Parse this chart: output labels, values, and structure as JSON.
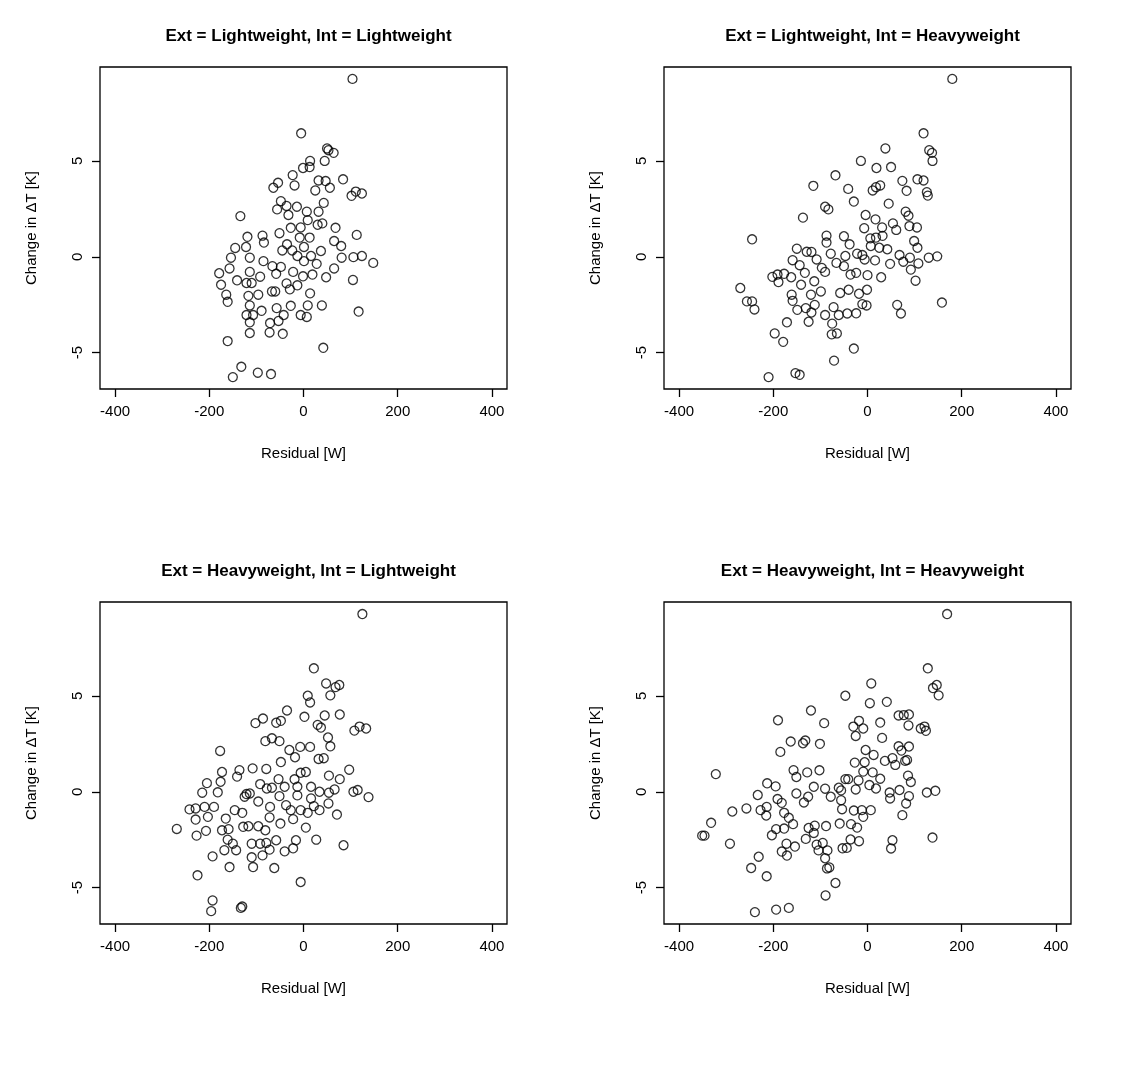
{
  "chart_data": [
    {
      "type": "scatter",
      "title": "Ext = Lightweight, Int = Lightweight",
      "xlabel": "Residual [W]",
      "ylabel": "Change in ΔT [K]",
      "xlim": [
        -432,
        432
      ],
      "ylim": [
        -6.9,
        9.9
      ],
      "xticks": [
        -400,
        -200,
        0,
        200,
        400
      ],
      "yticks": [
        -5,
        0,
        5
      ],
      "grid": false,
      "marker": "circle",
      "color": "#000000",
      "x": [
        104,
        -5,
        50,
        53,
        64,
        14,
        45,
        -1,
        13,
        -23,
        -19,
        -54,
        -64,
        32,
        47,
        56,
        84,
        25,
        102,
        111,
        124,
        -48,
        -56,
        -36,
        -14,
        43,
        -134,
        -32,
        7,
        32,
        9,
        30,
        40,
        -27,
        -6,
        68,
        -51,
        113,
        -119,
        -87,
        -8,
        13,
        65,
        80,
        -145,
        -122,
        -84,
        -35,
        37,
        1,
        -45,
        -24,
        -154,
        -114,
        -85,
        106,
        124,
        148,
        81,
        -13,
        1,
        16,
        -66,
        -48,
        28,
        65,
        -179,
        -157,
        -141,
        -114,
        -92,
        -58,
        -22,
        -1,
        19,
        48,
        -175,
        -164,
        -161,
        -121,
        -110,
        -96,
        -67,
        -60,
        -36,
        -29,
        -13,
        14,
        105,
        -117,
        -114,
        -89,
        -121,
        -107,
        -57,
        -42,
        -27,
        9,
        39,
        -6,
        7,
        117,
        -114,
        -71,
        -53,
        -114,
        -72,
        -44,
        -161,
        42,
        -132,
        -150,
        -97,
        -69
      ],
      "values": [
        9.28,
        6.44,
        5.65,
        5.56,
        5.42,
        5.0,
        5.0,
        4.63,
        4.68,
        4.26,
        3.72,
        3.86,
        3.6,
        3.98,
        3.95,
        3.6,
        4.04,
        3.46,
        3.18,
        3.4,
        3.3,
        2.9,
        2.47,
        2.65,
        2.61,
        2.81,
        2.12,
        2.18,
        2.35,
        2.35,
        1.91,
        1.67,
        1.74,
        1.51,
        1.53,
        1.51,
        1.23,
        1.14,
        1.04,
        1.1,
        1.0,
        1.0,
        0.82,
        0.56,
        0.46,
        0.51,
        0.74,
        0.65,
        0.3,
        0.51,
        0.33,
        0.33,
        -0.05,
        -0.05,
        -0.23,
        -0.02,
        0.04,
        -0.32,
        -0.05,
        0.04,
        -0.23,
        0.04,
        -0.49,
        -0.53,
        -0.37,
        -0.61,
        -0.86,
        -0.61,
        -1.23,
        -0.79,
        -1.04,
        -0.89,
        -0.79,
        -1.02,
        -0.93,
        -1.07,
        -1.46,
        -1.98,
        -2.35,
        -1.37,
        -1.37,
        -1.98,
        -1.81,
        -1.81,
        -1.39,
        -1.7,
        -1.49,
        -1.91,
        -1.21,
        -2.04,
        -2.54,
        -2.82,
        -3.04,
        -3.04,
        -2.68,
        -3.04,
        -2.56,
        -2.54,
        -2.54,
        -3.04,
        -3.14,
        -2.86,
        -3.42,
        -3.46,
        -3.35,
        -3.98,
        -3.95,
        -4.02,
        -4.4,
        -4.75,
        -5.74,
        -6.28,
        -6.05,
        -6.12
      ]
    },
    {
      "type": "scatter",
      "title": "Ext = Lightweight, Int = Heavyweight",
      "xlabel": "Residual [W]",
      "ylabel": "Change in ΔT [K]",
      "xlim": [
        -432,
        432
      ],
      "ylim": [
        -6.9,
        9.9
      ],
      "xticks": [
        -400,
        -200,
        0,
        200,
        400
      ],
      "yticks": [
        -5,
        0,
        5
      ],
      "grid": false,
      "marker": "circle",
      "color": "#000000",
      "x": [
        180,
        119,
        131,
        137,
        138,
        38,
        -14,
        19,
        50,
        -68,
        -115,
        -41,
        11,
        18,
        27,
        74,
        83,
        106,
        119,
        126,
        128,
        -29,
        45,
        -90,
        -83,
        -137,
        -4,
        17,
        81,
        87,
        54,
        61,
        89,
        105,
        -7,
        31,
        -245,
        -87,
        -87,
        -50,
        -38,
        6,
        18,
        32,
        99,
        106,
        -150,
        -129,
        -119,
        -78,
        -47,
        -22,
        -11,
        7,
        25,
        42,
        68,
        90,
        130,
        148,
        -159,
        -144,
        -108,
        -97,
        -66,
        -50,
        -6,
        16,
        48,
        76,
        108,
        -202,
        -191,
        -177,
        -162,
        -189,
        -133,
        -113,
        -90,
        -36,
        -24,
        0,
        29,
        92,
        102,
        -270,
        -256,
        -245,
        -240,
        -161,
        -159,
        -141,
        -120,
        -99,
        -58,
        -40,
        -18,
        -1,
        -149,
        -131,
        -112,
        -119,
        -125,
        -90,
        -72,
        -61,
        -43,
        -24,
        -11,
        -2,
        63,
        71,
        158,
        -171,
        -75,
        -197,
        -179,
        -76,
        -65,
        -29,
        -71,
        -210,
        -153,
        -144
      ],
      "values": [
        9.28,
        6.44,
        5.56,
        5.42,
        5.0,
        5.65,
        5.0,
        4.63,
        4.68,
        4.25,
        3.7,
        3.54,
        3.46,
        3.63,
        3.72,
        3.96,
        3.44,
        4.04,
        3.98,
        3.37,
        3.19,
        2.88,
        2.77,
        2.61,
        2.47,
        2.04,
        2.18,
        1.95,
        2.35,
        2.14,
        1.74,
        1.4,
        1.6,
        1.53,
        1.49,
        1.53,
        0.91,
        1.1,
        0.74,
        1.07,
        0.65,
        0.96,
        1.0,
        1.09,
        0.82,
        0.47,
        0.42,
        0.26,
        0.25,
        0.16,
        0.04,
        0.16,
        0.09,
        0.56,
        0.47,
        0.39,
        0.09,
        -0.05,
        -0.05,
        0.02,
        -0.18,
        -0.44,
        -0.14,
        -0.58,
        -0.32,
        -0.49,
        -0.14,
        -0.19,
        -0.37,
        -0.26,
        -0.35,
        -1.05,
        -0.93,
        -0.89,
        -1.07,
        -1.32,
        -0.84,
        -1.28,
        -0.79,
        -0.93,
        -0.84,
        -0.96,
        -1.07,
        -0.67,
        -1.25,
        -1.63,
        -2.33,
        -2.33,
        -2.75,
        -1.98,
        -2.3,
        -1.46,
        -1.98,
        -1.81,
        -1.89,
        -1.72,
        -1.93,
        -1.72,
        -2.77,
        -2.68,
        -2.51,
        -2.91,
        -3.39,
        -3.04,
        -2.63,
        -3.04,
        -2.96,
        -2.95,
        -2.47,
        -2.54,
        -2.51,
        -2.96,
        -2.39,
        -3.42,
        -3.49,
        -4.0,
        -4.44,
        -4.05,
        -4.0,
        -4.79,
        -5.42,
        -6.28,
        -6.07,
        -6.16
      ]
    },
    {
      "type": "scatter",
      "title": "Ext = Heavyweight, Int = Lightweight",
      "xlabel": "Residual [W]",
      "ylabel": "Change in ΔT [K]",
      "xlim": [
        -432,
        432
      ],
      "ylim": [
        -6.9,
        9.9
      ],
      "xticks": [
        -400,
        -200,
        0,
        200,
        400
      ],
      "yticks": [
        -5,
        0,
        5
      ],
      "grid": false,
      "marker": "circle",
      "color": "#000000",
      "x": [
        125,
        22,
        48,
        68,
        76,
        57,
        9,
        14,
        -35,
        2,
        45,
        77,
        -102,
        -86,
        -58,
        -48,
        30,
        37,
        108,
        119,
        133,
        -81,
        -67,
        -51,
        52,
        -177,
        -30,
        -7,
        14,
        57,
        -18,
        32,
        43,
        -48,
        -173,
        -141,
        -136,
        -108,
        -79,
        -6,
        5,
        97,
        -205,
        -176,
        -215,
        -182,
        -92,
        -53,
        -19,
        54,
        77,
        -121,
        -114,
        -78,
        -67,
        -40,
        -13,
        16,
        34,
        66,
        106,
        115,
        138,
        -125,
        -96,
        -51,
        -13,
        16,
        54,
        -242,
        -229,
        -210,
        -190,
        -203,
        -229,
        -165,
        -146,
        -130,
        -71,
        -37,
        -27,
        -6,
        9,
        22,
        34,
        53,
        -22,
        -72,
        71,
        -269,
        -227,
        -207,
        -173,
        -159,
        -128,
        -117,
        -96,
        -81,
        -49,
        5,
        -161,
        -150,
        -143,
        -168,
        -110,
        -92,
        -79,
        -58,
        -72,
        -40,
        -22,
        -16,
        27,
        85,
        -193,
        -110,
        -87,
        -157,
        -107,
        -62,
        -225,
        -6,
        -193,
        -196,
        -133,
        -130
      ],
      "values": [
        9.27,
        6.44,
        5.65,
        5.46,
        5.57,
        5.03,
        5.01,
        4.66,
        4.24,
        3.91,
        3.98,
        4.03,
        3.58,
        3.82,
        3.6,
        3.7,
        3.49,
        3.35,
        3.19,
        3.4,
        3.3,
        2.64,
        2.79,
        2.64,
        2.83,
        2.13,
        2.18,
        2.34,
        2.34,
        2.37,
        1.8,
        1.71,
        1.75,
        1.55,
        1.03,
        0.79,
        1.13,
        1.22,
        1.19,
        0.99,
        1.03,
        1.15,
        0.45,
        0.52,
        -0.05,
        -0.03,
        0.4,
        0.66,
        0.65,
        0.84,
        0.66,
        -0.12,
        -0.09,
        0.17,
        0.21,
        0.26,
        0.26,
        0.26,
        0.0,
        0.12,
        0.0,
        0.09,
        -0.28,
        -0.26,
        -0.51,
        -0.23,
        -0.19,
        -0.35,
        -0.05,
        -0.92,
        -0.87,
        -0.79,
        -0.79,
        -1.31,
        -1.45,
        -1.4,
        -0.96,
        -1.1,
        -0.79,
        -0.7,
        -0.96,
        -0.96,
        -1.1,
        -0.75,
        -0.96,
        -0.61,
        -1.43,
        -1.34,
        -1.19,
        -1.94,
        -2.29,
        -2.04,
        -2.01,
        -1.95,
        -1.83,
        -1.8,
        -1.8,
        -2.01,
        -1.66,
        -1.87,
        -2.5,
        -2.71,
        -3.05,
        -3.05,
        -2.71,
        -2.71,
        -2.67,
        -2.53,
        -3.02,
        -3.11,
        -2.95,
        -2.53,
        -2.5,
        -2.79,
        -3.37,
        -3.42,
        -3.32,
        -3.93,
        -3.93,
        -3.98,
        -4.36,
        -4.71,
        -5.67,
        -6.23,
        -6.06,
        -5.99
      ]
    },
    {
      "type": "scatter",
      "title": "Ext = Heavyweight, Int = Heavyweight",
      "xlabel": "Residual [W]",
      "ylabel": "Change in ΔT [K]",
      "xlim": [
        -432,
        432
      ],
      "ylim": [
        -6.9,
        9.9
      ],
      "xticks": [
        -400,
        -200,
        0,
        200,
        400
      ],
      "yticks": [
        -5,
        0,
        5
      ],
      "grid": false,
      "marker": "circle",
      "color": "#000000",
      "x": [
        169,
        128,
        8,
        139,
        147,
        151,
        -47,
        5,
        41,
        -120,
        -190,
        -92,
        66,
        77,
        88,
        87,
        27,
        -30,
        -18,
        -9,
        -25,
        31,
        113,
        121,
        124,
        -163,
        -137,
        -132,
        -101,
        -185,
        -4,
        13,
        66,
        72,
        88,
        -27,
        -6,
        37,
        53,
        80,
        59,
        84,
        -322,
        -157,
        -151,
        -128,
        -102,
        -47,
        -41,
        -9,
        11,
        27,
        86,
        92,
        -213,
        -195,
        -233,
        -151,
        -191,
        -182,
        -114,
        -90,
        -61,
        -56,
        -25,
        -19,
        4,
        18,
        47,
        68,
        126,
        144,
        -135,
        -126,
        -78,
        -56,
        48,
        88,
        82,
        -287,
        -257,
        -227,
        -214,
        -215,
        -177,
        -167,
        -158,
        -54,
        -29,
        -12,
        7,
        -9,
        74,
        -332,
        -351,
        -346,
        -292,
        -203,
        -194,
        -177,
        -125,
        -112,
        -88,
        -59,
        -35,
        -22,
        -131,
        -114,
        -108,
        -95,
        -104,
        -85,
        -53,
        -44,
        -36,
        -18,
        53,
        50,
        138,
        -172,
        -182,
        -171,
        -154,
        -231,
        -247,
        -214,
        -90,
        -86,
        -81,
        -68,
        -89,
        -239,
        -194,
        -167
      ],
      "values": [
        9.27,
        6.44,
        5.65,
        5.41,
        5.57,
        5.03,
        5.01,
        4.62,
        4.69,
        4.24,
        3.73,
        3.58,
        3.98,
        4.0,
        4.03,
        3.46,
        3.61,
        3.4,
        3.7,
        3.3,
        2.91,
        2.81,
        3.3,
        3.4,
        3.18,
        2.62,
        2.53,
        2.67,
        2.5,
        2.08,
        2.18,
        1.92,
        2.37,
        2.15,
        2.36,
        1.52,
        1.54,
        1.61,
        1.75,
        1.61,
        1.4,
        1.66,
        0.92,
        1.13,
        0.77,
        1.01,
        1.12,
        0.66,
        0.66,
        1.05,
        1.01,
        0.68,
        0.84,
        0.51,
        0.44,
        0.28,
        -0.17,
        -0.09,
        -0.38,
        -0.58,
        0.26,
        0.16,
        0.21,
        0.07,
        0.12,
        0.59,
        0.35,
        0.17,
        -0.04,
        0.09,
        -0.04,
        0.05,
        -0.56,
        -0.26,
        -0.26,
        -0.44,
        -0.35,
        -0.23,
        -0.61,
        -1.03,
        -0.87,
        -0.96,
        -0.79,
        -1.24,
        -1.1,
        -1.36,
        -1.69,
        -0.91,
        -0.98,
        -0.96,
        -0.96,
        -1.31,
        -1.22,
        -1.62,
        -2.29,
        -2.29,
        -2.71,
        -2.27,
        -1.95,
        -1.92,
        -1.89,
        -1.77,
        -1.79,
        -1.66,
        -1.69,
        -1.87,
        -2.46,
        -2.15,
        -2.76,
        -2.67,
        -3.06,
        -3.06,
        -2.95,
        -2.93,
        -2.49,
        -2.58,
        -2.53,
        -2.96,
        -2.39,
        -2.71,
        -3.12,
        -3.33,
        -2.86,
        -3.39,
        -3.98,
        -4.41,
        -3.47,
        -4.0,
        -3.95,
        -4.76,
        -5.41,
        -6.28,
        -6.15,
        -6.06
      ]
    }
  ]
}
